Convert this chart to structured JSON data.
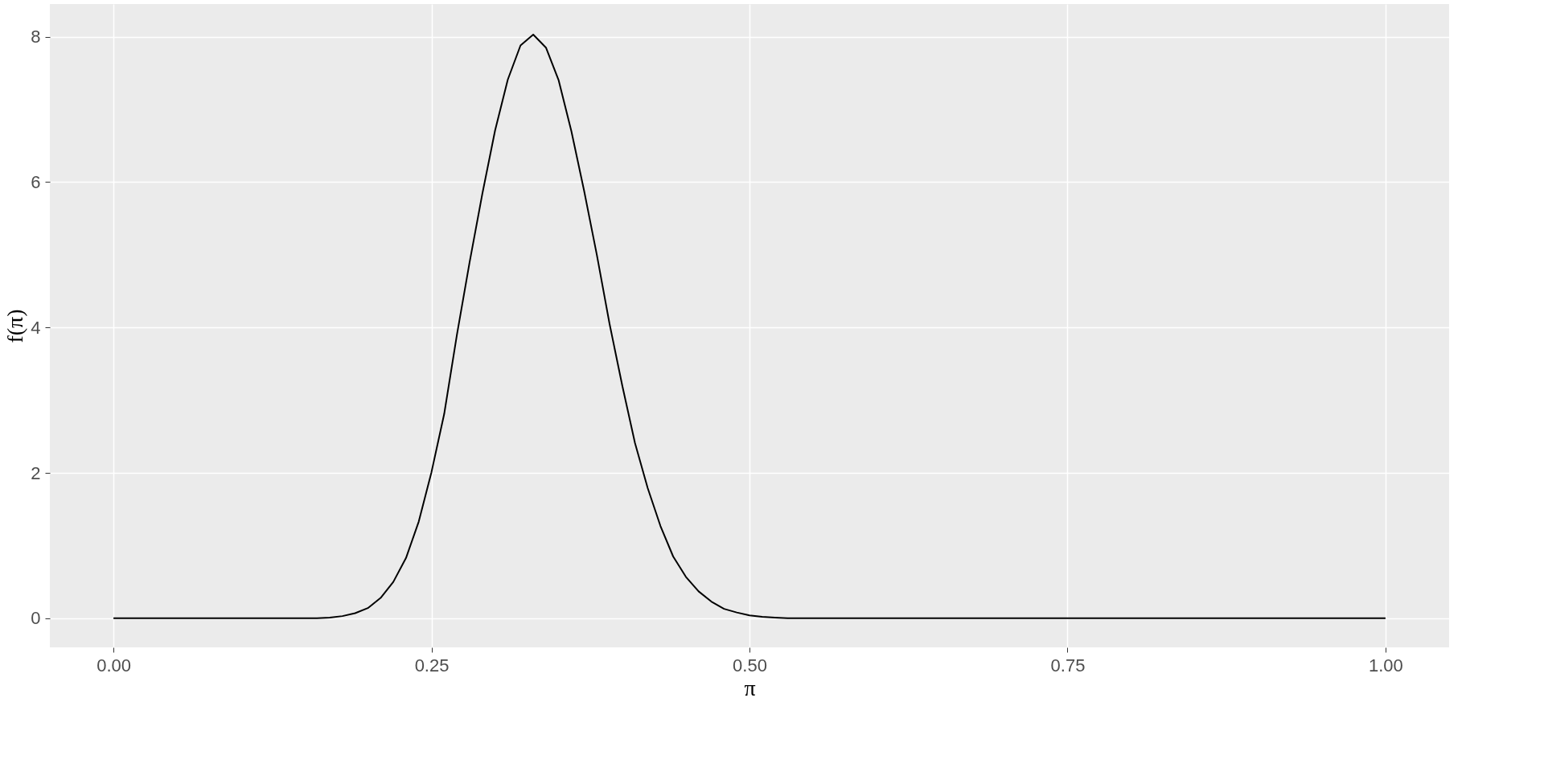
{
  "chart_data": {
    "type": "line",
    "xlabel": "π",
    "ylabel": "f(π)",
    "x": [
      0,
      0.05,
      0.1,
      0.15,
      0.16,
      0.17,
      0.18,
      0.19,
      0.2,
      0.21,
      0.22,
      0.23,
      0.24,
      0.25,
      0.26,
      0.27,
      0.28,
      0.29,
      0.3,
      0.31,
      0.32,
      0.33,
      0.34,
      0.35,
      0.36,
      0.37,
      0.38,
      0.39,
      0.4,
      0.41,
      0.42,
      0.43,
      0.44,
      0.45,
      0.46,
      0.47,
      0.48,
      0.49,
      0.5,
      0.51,
      0.52,
      0.53,
      0.55,
      0.6,
      0.7,
      0.8,
      0.9,
      1.0
    ],
    "series": [
      {
        "color": "#000000",
        "values": [
          0,
          0,
          0,
          0,
          0,
          0.01,
          0.03,
          0.07,
          0.14,
          0.28,
          0.5,
          0.83,
          1.33,
          2.01,
          2.81,
          3.9,
          4.9,
          5.84,
          6.71,
          7.41,
          7.88,
          8.03,
          7.85,
          7.4,
          6.7,
          5.88,
          5.0,
          4.05,
          3.2,
          2.41,
          1.79,
          1.27,
          0.85,
          0.57,
          0.37,
          0.23,
          0.13,
          0.08,
          0.04,
          0.02,
          0.01,
          0,
          0,
          0,
          0,
          0,
          0,
          0
        ]
      }
    ],
    "xlim": [
      -0.05,
      1.05
    ],
    "ylim": [
      -0.4,
      8.45
    ],
    "xticks": [
      {
        "value": 0,
        "label": "0.00"
      },
      {
        "value": 0.25,
        "label": "0.25"
      },
      {
        "value": 0.5,
        "label": "0.50"
      },
      {
        "value": 0.75,
        "label": "0.75"
      },
      {
        "value": 1.0,
        "label": "1.00"
      }
    ],
    "yticks": [
      0,
      2,
      4,
      6,
      8
    ],
    "grid": true,
    "marker": "none",
    "line_style": "solid"
  }
}
